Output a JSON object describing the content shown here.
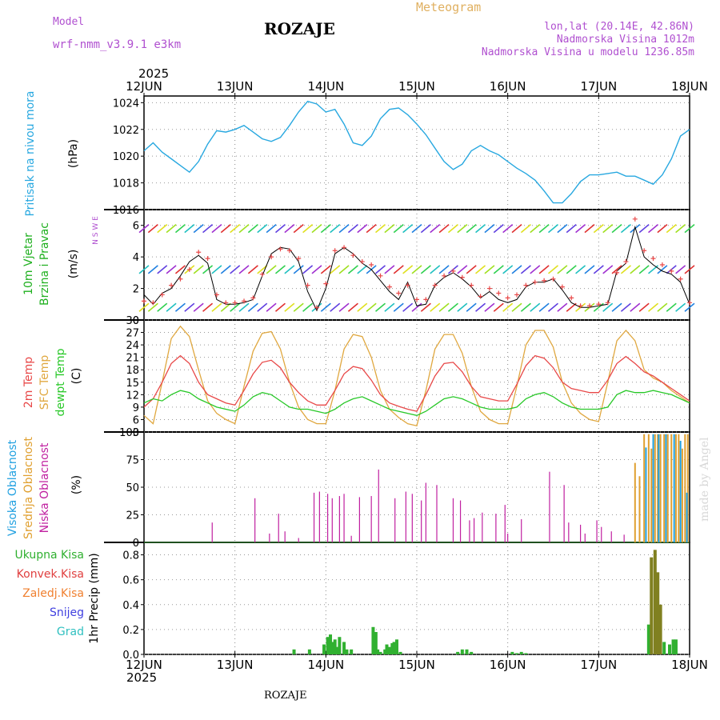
{
  "header": {
    "model_label": "Model",
    "model_name": "wrf-nmm_v3.9.1  e3km",
    "title": "ROZAJE",
    "meteogram": "Meteogram",
    "lonlat": "lon,lat (20.14E, 42.86N)",
    "elevation": "Nadmorska Visina 1012m",
    "model_elevation": "Nadmorska Visina u modelu 1236.85m",
    "year_top": "2025",
    "year_bottom": "2025",
    "bottom_name": "ROZAJE",
    "made_by": "made by Angel"
  },
  "colors": {
    "pressure": "#28a8e0",
    "temp2m": "#e84848",
    "sfc_temp": "#e0a840",
    "dewpt": "#28c828",
    "low_cloud": "#c020a0",
    "mid_cloud": "#e0a030",
    "high_cloud": "#20a0e0",
    "precip_total": "#30b030",
    "precip_conv": "#e04040"
  },
  "x_ticks": [
    "12JUN",
    "13JUN",
    "14JUN",
    "15JUN",
    "16JUN",
    "17JUN",
    "18JUN"
  ],
  "chart_data": [
    {
      "type": "line",
      "panel": "pressure",
      "ylabel_main": "Pritisak na nivou mora",
      "ylabel_unit": "(hPa)",
      "ylim": [
        1016,
        1024.5
      ],
      "yticks": [
        1016,
        1018,
        1020,
        1022,
        1024
      ],
      "x": [
        0,
        0.1,
        0.2,
        0.3,
        0.4,
        0.5,
        0.6,
        0.7,
        0.8,
        0.9,
        1.0,
        1.1,
        1.2,
        1.3,
        1.4,
        1.5,
        1.6,
        1.7,
        1.8,
        1.9,
        2.0,
        2.1,
        2.2,
        2.3,
        2.4,
        2.5,
        2.6,
        2.7,
        2.8,
        2.9,
        3.0,
        3.1,
        3.2,
        3.3,
        3.4,
        3.5,
        3.6,
        3.7,
        3.8,
        3.9,
        4.0,
        4.1,
        4.2,
        4.3,
        4.4,
        4.5,
        4.6,
        4.7,
        4.8,
        4.9,
        5.0,
        5.1,
        5.2,
        5.3,
        5.4,
        5.5,
        5.6,
        5.7,
        5.8,
        5.9,
        6.0
      ],
      "series": [
        {
          "name": "MSLP",
          "values": [
            1020.4,
            1021.0,
            1020.3,
            1019.8,
            1019.3,
            1018.8,
            1019.6,
            1020.9,
            1021.9,
            1021.8,
            1022.0,
            1022.3,
            1021.8,
            1021.3,
            1021.1,
            1021.4,
            1022.3,
            1023.3,
            1024.1,
            1023.9,
            1023.3,
            1023.5,
            1022.4,
            1021.0,
            1020.8,
            1021.5,
            1022.8,
            1023.5,
            1023.6,
            1023.1,
            1022.4,
            1021.6,
            1020.6,
            1019.6,
            1019.0,
            1019.4,
            1020.4,
            1020.8,
            1020.4,
            1020.1,
            1019.6,
            1019.1,
            1018.7,
            1018.2,
            1017.4,
            1016.5,
            1016.5,
            1017.2,
            1018.1,
            1018.6,
            1018.6,
            1018.7,
            1018.8,
            1018.5,
            1018.5,
            1018.2,
            1017.9,
            1018.6,
            1019.8,
            1021.5,
            1022.0
          ]
        }
      ]
    },
    {
      "type": "line",
      "panel": "wind",
      "ylabel_main": "10m Vjetar",
      "ylabel_sub": "Brzina i Pravac",
      "ylabel_unit": "(m/s)",
      "compass": "N S W E",
      "ylim": [
        0,
        7
      ],
      "yticks": [
        0,
        2,
        4,
        6
      ],
      "x": [
        0,
        0.1,
        0.2,
        0.3,
        0.4,
        0.5,
        0.6,
        0.7,
        0.8,
        0.9,
        1.0,
        1.1,
        1.2,
        1.3,
        1.4,
        1.5,
        1.6,
        1.7,
        1.8,
        1.9,
        2.0,
        2.1,
        2.2,
        2.3,
        2.4,
        2.5,
        2.6,
        2.7,
        2.8,
        2.9,
        3.0,
        3.1,
        3.2,
        3.3,
        3.4,
        3.5,
        3.6,
        3.7,
        3.8,
        3.9,
        4.0,
        4.1,
        4.2,
        4.3,
        4.4,
        4.5,
        4.6,
        4.7,
        4.8,
        4.9,
        5.0,
        5.1,
        5.2,
        5.3,
        5.4,
        5.5,
        5.6,
        5.7,
        5.8,
        5.9,
        6.0
      ],
      "series": [
        {
          "name": "wind speed",
          "values": [
            1.6,
            1.0,
            1.7,
            2.0,
            2.8,
            3.7,
            4.1,
            3.6,
            1.3,
            1.0,
            1.0,
            1.1,
            1.3,
            2.8,
            4.2,
            4.6,
            4.5,
            3.7,
            1.8,
            0.6,
            2.0,
            4.2,
            4.6,
            4.2,
            3.6,
            3.2,
            2.5,
            1.8,
            1.3,
            2.4,
            0.9,
            1.0,
            2.2,
            2.7,
            3.0,
            2.6,
            2.1,
            1.4,
            1.8,
            1.3,
            1.1,
            1.3,
            2.1,
            2.4,
            2.4,
            2.6,
            1.9,
            1.1,
            0.8,
            0.8,
            0.9,
            1.0,
            3.1,
            3.6,
            5.9,
            4.0,
            3.5,
            3.1,
            2.9,
            2.4,
            1.0
          ]
        },
        {
          "name": "gust marker",
          "values": [
            1.2,
            1.1,
            1.6,
            2.2,
            2.6,
            3.2,
            4.3,
            3.9,
            1.6,
            1.1,
            1.1,
            1.2,
            1.4,
            2.9,
            4.0,
            4.5,
            4.4,
            3.9,
            2.2,
            0.8,
            2.3,
            4.4,
            4.6,
            4.1,
            3.7,
            3.5,
            2.8,
            2.1,
            1.7,
            2.2,
            1.3,
            1.3,
            2.2,
            2.8,
            3.1,
            2.7,
            2.2,
            1.5,
            2.0,
            1.7,
            1.4,
            1.6,
            2.2,
            2.4,
            2.5,
            2.6,
            2.1,
            1.4,
            0.9,
            0.9,
            1.0,
            1.1,
            3.0,
            3.7,
            6.4,
            4.4,
            3.9,
            3.5,
            3.1,
            2.6,
            1.1
          ]
        }
      ],
      "barb_rows": [
        0.8,
        3.2,
        5.8
      ]
    },
    {
      "type": "line",
      "panel": "temperature",
      "ylabel_main": "2m Temp",
      "ylabel_sub": "SFC Temp",
      "ylabel_sub2": "dewpt Temp",
      "ylabel_unit": "(C)",
      "ylim": [
        3,
        30
      ],
      "yticks": [
        3,
        6,
        9,
        12,
        15,
        18,
        21,
        24,
        27,
        30
      ],
      "x": [
        0,
        0.1,
        0.2,
        0.3,
        0.4,
        0.5,
        0.6,
        0.7,
        0.8,
        0.9,
        1.0,
        1.1,
        1.2,
        1.3,
        1.4,
        1.5,
        1.6,
        1.7,
        1.8,
        1.9,
        2.0,
        2.1,
        2.2,
        2.3,
        2.4,
        2.5,
        2.6,
        2.7,
        2.8,
        2.9,
        3.0,
        3.1,
        3.2,
        3.3,
        3.4,
        3.5,
        3.6,
        3.7,
        3.8,
        3.9,
        4.0,
        4.1,
        4.2,
        4.3,
        4.4,
        4.5,
        4.6,
        4.7,
        4.8,
        4.9,
        5.0,
        5.1,
        5.2,
        5.3,
        5.4,
        5.5,
        5.6,
        5.7,
        5.8,
        5.9,
        6.0
      ],
      "series": [
        {
          "name": "2m Temp",
          "values": [
            9.0,
            11.0,
            15.0,
            19.5,
            21.4,
            19.5,
            15.0,
            12.0,
            11.0,
            10.0,
            9.5,
            13.0,
            17.0,
            19.8,
            20.3,
            18.5,
            15.0,
            12.5,
            10.5,
            9.5,
            9.5,
            13.0,
            17.0,
            18.8,
            18.3,
            15.5,
            12.0,
            10.0,
            9.2,
            8.5,
            8.0,
            12.0,
            16.5,
            19.5,
            19.8,
            17.5,
            14.0,
            11.5,
            11.0,
            10.5,
            10.5,
            14.5,
            19.0,
            21.4,
            20.8,
            18.5,
            15.0,
            13.5,
            13.0,
            12.5,
            12.5,
            15.5,
            19.5,
            21.2,
            19.5,
            17.5,
            16.5,
            15.0,
            13.5,
            12.0,
            10.5
          ]
        },
        {
          "name": "SFC Temp",
          "values": [
            7.0,
            5.0,
            15.0,
            25.5,
            28.5,
            26.0,
            18.0,
            10.5,
            7.5,
            6.0,
            5.0,
            14.0,
            22.5,
            26.8,
            27.2,
            23.0,
            15.0,
            9.0,
            6.0,
            5.0,
            5.0,
            13.0,
            23.0,
            26.5,
            26.0,
            21.0,
            13.0,
            8.5,
            6.5,
            5.0,
            4.5,
            13.0,
            23.0,
            26.5,
            26.5,
            22.0,
            14.0,
            8.0,
            6.0,
            5.0,
            5.0,
            14.0,
            24.0,
            27.5,
            27.5,
            23.5,
            15.0,
            10.0,
            7.5,
            6.0,
            5.5,
            15.0,
            25.0,
            27.5,
            25.0,
            18.0,
            16.0,
            15.0,
            13.0,
            11.5,
            10.0
          ]
        },
        {
          "name": "dewpt Temp",
          "values": [
            10.0,
            11.0,
            10.5,
            12.0,
            13.0,
            12.5,
            11.0,
            10.0,
            9.0,
            8.5,
            8.0,
            9.5,
            11.5,
            12.5,
            12.0,
            10.5,
            9.0,
            8.5,
            8.5,
            8.0,
            7.5,
            8.5,
            10.0,
            11.0,
            11.5,
            10.5,
            9.5,
            8.5,
            8.0,
            7.5,
            7.0,
            8.0,
            9.5,
            11.0,
            11.5,
            11.0,
            10.0,
            9.0,
            8.5,
            8.5,
            8.5,
            9.0,
            11.0,
            12.0,
            12.5,
            11.5,
            10.0,
            9.0,
            8.5,
            8.5,
            8.5,
            9.0,
            12.0,
            13.0,
            12.5,
            12.5,
            13.0,
            12.5,
            12.0,
            11.0,
            10.0
          ]
        }
      ]
    },
    {
      "type": "bar",
      "panel": "cloud",
      "ylabel_high": "Visoka Oblacnost",
      "ylabel_mid": "Srednja Oblacnost",
      "ylabel_low": "Niska Oblacnost",
      "ylabel_unit": "(%)",
      "ylim": [
        0,
        100
      ],
      "yticks": [
        0,
        25,
        50,
        75,
        100
      ],
      "low": {
        "x": [
          0.75,
          1.22,
          1.38,
          1.48,
          1.55,
          1.7,
          1.87,
          1.93,
          2.02,
          2.07,
          2.15,
          2.2,
          2.28,
          2.37,
          2.5,
          2.58,
          2.76,
          2.88,
          2.95,
          3.05,
          3.1,
          3.22,
          3.4,
          3.48,
          3.58,
          3.63,
          3.72,
          3.87,
          3.97,
          4.0,
          4.15,
          4.46,
          4.62,
          4.67,
          4.8,
          4.85,
          4.98,
          5.03,
          5.14,
          5.28
        ],
        "values": [
          18,
          40,
          8,
          26,
          10,
          4,
          45,
          46,
          44,
          40,
          42,
          44,
          6,
          41,
          42,
          66,
          40,
          46,
          44,
          38,
          54,
          52,
          40,
          38,
          20,
          22,
          27,
          26,
          34,
          8,
          21,
          64,
          52,
          18,
          16,
          8,
          20,
          14,
          10,
          7
        ]
      },
      "mid": {
        "x": [
          5.4,
          5.45,
          5.5,
          5.55,
          5.58,
          5.62,
          5.65,
          5.68,
          5.72,
          5.76,
          5.8,
          5.85,
          5.88,
          5.92,
          5.95,
          5.98
        ],
        "values": [
          72,
          60,
          98,
          98,
          85,
          98,
          98,
          98,
          98,
          98,
          98,
          98,
          98,
          85,
          98,
          98
        ]
      },
      "high": {
        "x": [
          5.52,
          5.6,
          5.66,
          5.74,
          5.83,
          5.9,
          5.97
        ],
        "values": [
          86,
          98,
          98,
          98,
          98,
          92,
          45
        ]
      }
    },
    {
      "type": "bar",
      "panel": "precip",
      "legend": [
        "Ukupna Kisa",
        "Konvek.Kisa",
        "Zaledj.Kisa",
        "Snijeg",
        "Grad"
      ],
      "legend_colors": [
        "#30b030",
        "#e04040",
        "#f08030",
        "#4040e0",
        "#30c0c0"
      ],
      "ylabel_unit": "1hr Precip (mm)",
      "ylim": [
        0,
        0.9
      ],
      "yticks": [
        0,
        0.2,
        0.4,
        0.6,
        0.8
      ],
      "x": [
        1.65,
        1.82,
        1.98,
        2.02,
        2.05,
        2.07,
        2.1,
        2.12,
        2.15,
        2.2,
        2.23,
        2.28,
        2.52,
        2.55,
        2.57,
        2.6,
        2.65,
        2.67,
        2.7,
        2.73,
        2.75,
        2.78,
        2.82,
        3.45,
        3.5,
        3.55,
        3.6,
        4.05,
        4.1,
        4.15,
        4.2,
        5.55,
        5.58,
        5.62,
        5.65,
        5.68,
        5.72,
        5.78,
        5.82,
        5.85
      ],
      "values": [
        0.04,
        0.04,
        0.08,
        0.14,
        0.16,
        0.1,
        0.12,
        0.06,
        0.14,
        0.1,
        0.04,
        0.04,
        0.22,
        0.18,
        0.04,
        0.02,
        0.04,
        0.08,
        0.06,
        0.09,
        0.1,
        0.12,
        0.02,
        0.02,
        0.04,
        0.04,
        0.02,
        0.02,
        0.01,
        0.02,
        0.01,
        0.24,
        0.78,
        0.84,
        0.66,
        0.4,
        0.1,
        0.08,
        0.12,
        0.12
      ]
    }
  ]
}
